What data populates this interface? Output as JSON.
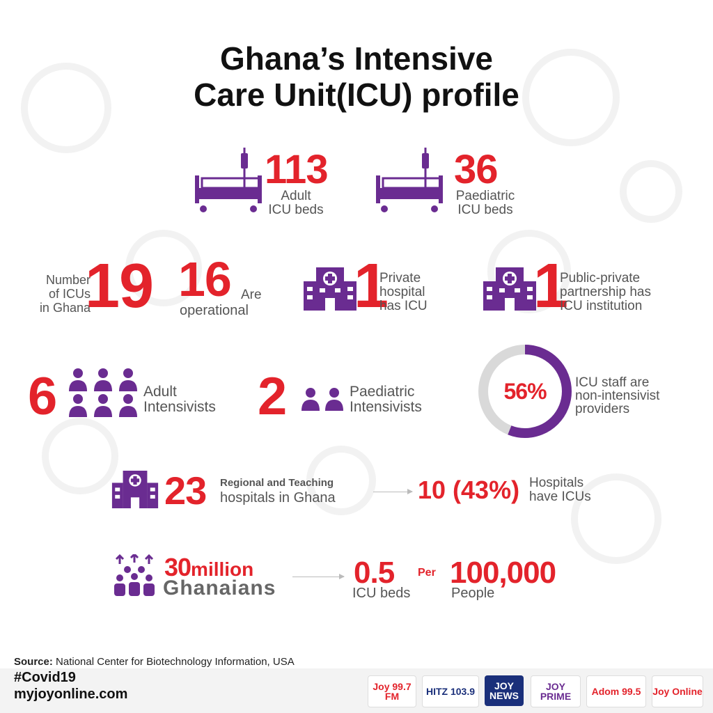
{
  "title": {
    "line1": "Ghana’s Intensive",
    "line2": "Care Unit(ICU) profile"
  },
  "beds": {
    "adult": {
      "value": "113",
      "label1": "Adult",
      "label2": "ICU beds"
    },
    "paediatric": {
      "value": "36",
      "label1": "Paediatric",
      "label2": "ICU beds"
    }
  },
  "icus": {
    "number_label1": "Number",
    "number_label2": "of ICUs",
    "number_label3": "in Ghana",
    "number_value": "19",
    "operational_value": "16",
    "operational_label1": "Are",
    "operational_label2": "operational",
    "private_value": "1",
    "private_label1": "Private",
    "private_label2": "hospital",
    "private_label3": "has ICU",
    "ppp_value": "1",
    "ppp_label1": "Public-private",
    "ppp_label2": "partnership has",
    "ppp_label3": "ICU institution"
  },
  "intensivists": {
    "adult_value": "6",
    "adult_label1": "Adult",
    "adult_label2": "Intensivists",
    "paed_value": "2",
    "paed_label1": "Paediatric",
    "paed_label2": "Intensivists",
    "non_intensivist_percent": "56%",
    "non_intensivist_fraction": 0.56,
    "non_label1": "ICU staff are",
    "non_label2": "non-intensivist",
    "non_label3": "providers"
  },
  "hospitals": {
    "value": "23",
    "label1": "Regional and Teaching",
    "label2": "hospitals in Ghana",
    "with_icu": "10 (43%)",
    "with_label1": "Hospitals",
    "with_label2": "have ICUs"
  },
  "population": {
    "value": "30",
    "unit": "million",
    "label": "Ghanaians",
    "ratio": "0.5",
    "ratio_label": "ICU beds",
    "per": "Per",
    "per_value": "100,000",
    "per_label": "People"
  },
  "source": {
    "prefix": "Source:",
    "text": "National Center for Biotechnology Information, USA"
  },
  "hashtag": "#Covid19",
  "site": "myjoyonline.com",
  "logos": [
    {
      "text": "Joy 99.7 FM",
      "icon": "joy-fm-logo"
    },
    {
      "text": "HITZ 103.9",
      "icon": "hitz-logo"
    },
    {
      "text": "JOY NEWS",
      "icon": "joy-news-logo"
    },
    {
      "text": "JOY PRIME",
      "icon": "joy-prime-logo"
    },
    {
      "text": "Adom 99.5",
      "icon": "adom-logo"
    },
    {
      "text": "Joy Online",
      "icon": "joy-online-logo"
    }
  ],
  "colors": {
    "accent": "#e3232b",
    "purple": "#6a2c91",
    "gray_text": "#555555"
  }
}
